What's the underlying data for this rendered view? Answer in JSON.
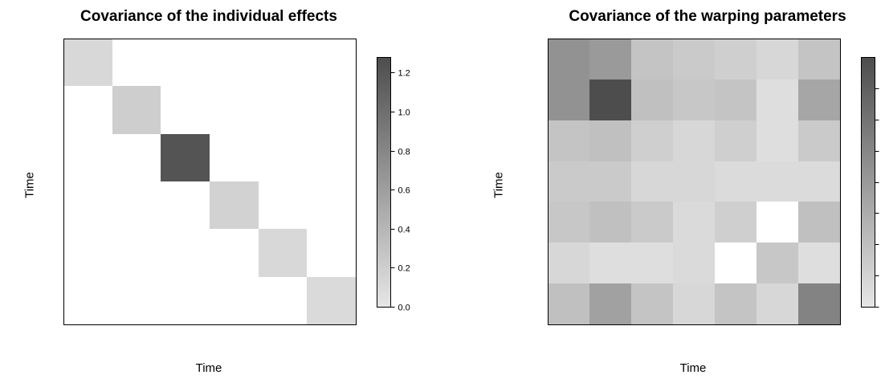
{
  "chart_data": [
    {
      "type": "heatmap",
      "title": "Covariance of the individual effects",
      "xlabel": "Time",
      "ylabel": "Time",
      "grid": false,
      "legend": "right",
      "colorbar": {
        "min": 0.0,
        "max": 1.28,
        "ticks": [
          0.0,
          0.2,
          0.4,
          0.6,
          0.8,
          1.0,
          1.2
        ],
        "tick_labels": [
          "0.0",
          "0.2",
          "0.4",
          "0.6",
          "0.8",
          "1.0",
          "1.2"
        ],
        "low_color": "#e6e6e6",
        "high_color": "#4d4d4d"
      },
      "matrix": [
        [
          0.12,
          0,
          0,
          0,
          0,
          0
        ],
        [
          0,
          0.2,
          0,
          0,
          0,
          0
        ],
        [
          0,
          0,
          1.22,
          0,
          0,
          0
        ],
        [
          0,
          0,
          0,
          0.17,
          0,
          0
        ],
        [
          0,
          0,
          0,
          0,
          0.12,
          0
        ],
        [
          0,
          0,
          0,
          0,
          0,
          0.1
        ]
      ],
      "zero_color": "#ffffff"
    },
    {
      "type": "heatmap",
      "title": "Covariance of the warping parameters",
      "xlabel": "Time",
      "ylabel": "Time",
      "grid": false,
      "legend": "right",
      "colorbar": {
        "min": 0.0,
        "max": 1.0,
        "ticks": [
          0.0,
          0.125,
          0.25,
          0.375,
          0.5,
          0.625,
          0.75,
          0.875
        ],
        "tick_labels": [],
        "low_color": "#e6e6e6",
        "high_color": "#4d4d4d"
      },
      "matrix": [
        [
          0.55,
          0.5,
          0.22,
          0.18,
          0.15,
          0.1,
          0.22
        ],
        [
          0.55,
          1.0,
          0.25,
          0.2,
          0.22,
          0.05,
          0.42
        ],
        [
          0.22,
          0.25,
          0.15,
          0.1,
          0.15,
          0.05,
          0.18
        ],
        [
          0.18,
          0.18,
          0.1,
          0.1,
          0.07,
          0.07,
          0.07
        ],
        [
          0.2,
          0.25,
          0.18,
          0.08,
          0.15,
          null,
          0.25
        ],
        [
          0.1,
          0.05,
          0.05,
          0.08,
          null,
          0.2,
          0.05
        ],
        [
          0.25,
          0.45,
          0.22,
          0.1,
          0.22,
          0.1,
          0.65
        ]
      ],
      "zero_color": "#ffffff"
    }
  ]
}
